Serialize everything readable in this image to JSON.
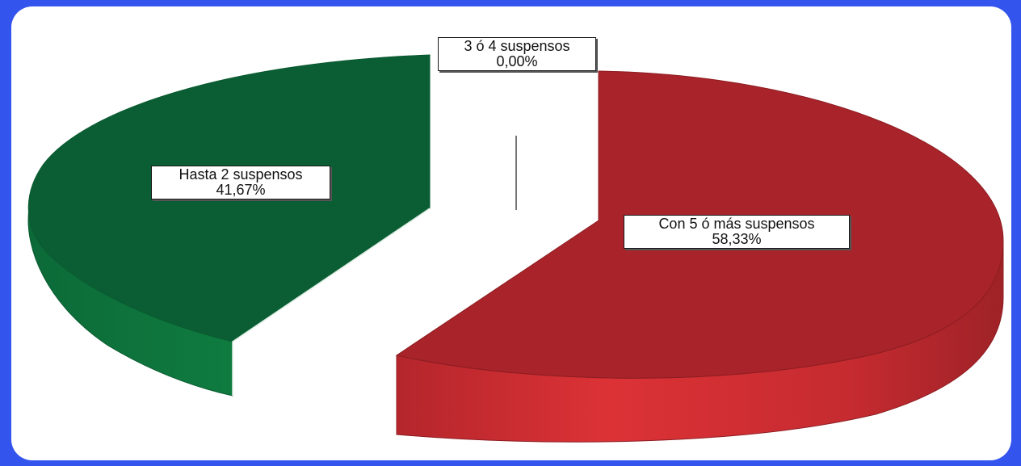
{
  "chart_data": {
    "type": "pie",
    "slices": [
      {
        "label": "Hasta 2 suspensos",
        "percent_text": "41,67%",
        "value": 41.67,
        "color": "#0b5e33"
      },
      {
        "label": "3 ó 4 suspensos",
        "percent_text": "0,00%",
        "value": 0.0,
        "color": "#cccccc"
      },
      {
        "label": "Con 5 ó más suspensos",
        "percent_text": "58,33%",
        "value": 58.33,
        "color": "#a8232a"
      }
    ],
    "exploded": true,
    "three_d": true,
    "legend": "none"
  },
  "colors": {
    "frame": "#3355ee",
    "panel": "#ffffff",
    "green_top": "#0b5e33",
    "green_side": "#0f7a3f",
    "red_top": "#a8232a",
    "red_side": "#d63030"
  }
}
